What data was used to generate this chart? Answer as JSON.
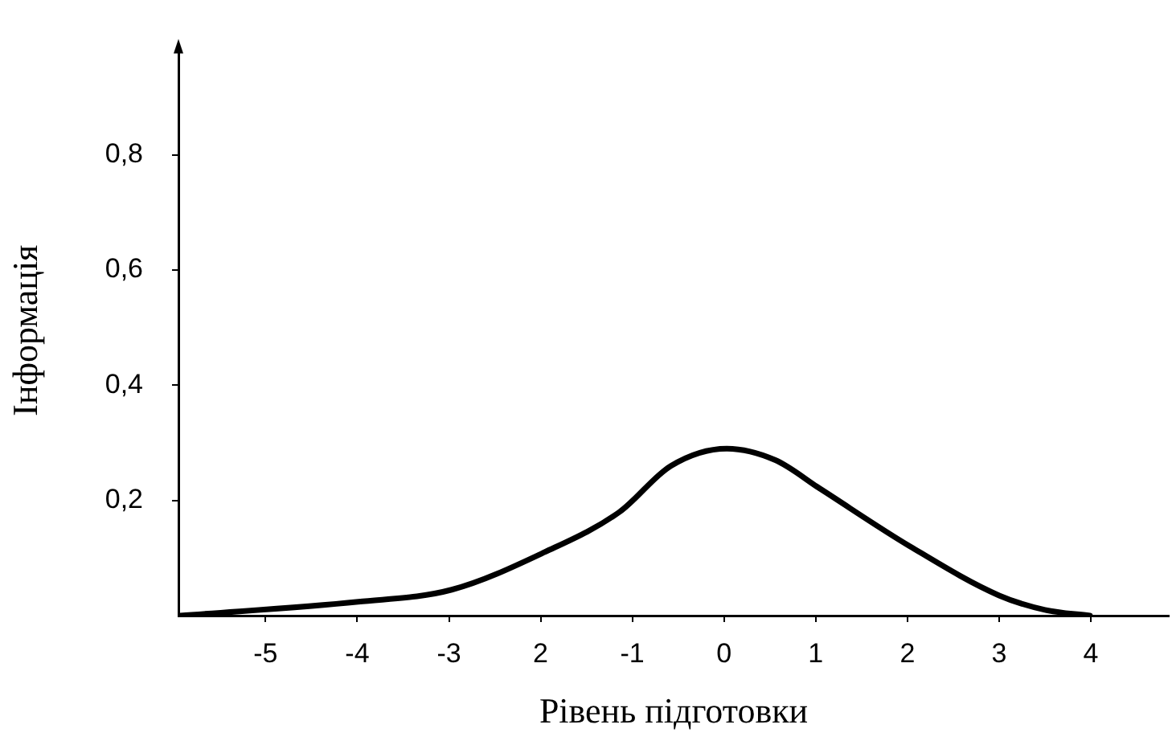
{
  "chart_data": {
    "type": "line",
    "xlabel": "Рівень підготовки",
    "ylabel": "Інформація",
    "x": [
      -5.93,
      -3.99,
      -2.97,
      -1.96,
      -1.14,
      -0.58,
      0.03,
      0.56,
      1.05,
      2.03,
      3.0,
      3.5,
      3.99
    ],
    "series": [
      {
        "color": "#000000",
        "values": [
          0,
          0.024,
          0.045,
          0.11,
          0.18,
          0.26,
          0.29,
          0.27,
          0.22,
          0.12,
          0.035,
          0.01,
          0
        ]
      }
    ],
    "xlim": [
      -5.95,
      4.85
    ],
    "ylim": [
      0,
      0.99
    ],
    "xticks": [
      -5,
      -4,
      -3,
      {
        "value": -2,
        "label": "2"
      },
      -1,
      0,
      1,
      2,
      3,
      4
    ],
    "yticks": [
      {
        "value": 0.2,
        "label": "0,2"
      },
      {
        "value": 0.4,
        "label": "0,4"
      },
      {
        "value": 0.6,
        "label": "0,6"
      },
      {
        "value": 0.8,
        "label": "0,8"
      }
    ],
    "grid": false,
    "legend": false,
    "marker": "none",
    "line_style": "solid"
  }
}
